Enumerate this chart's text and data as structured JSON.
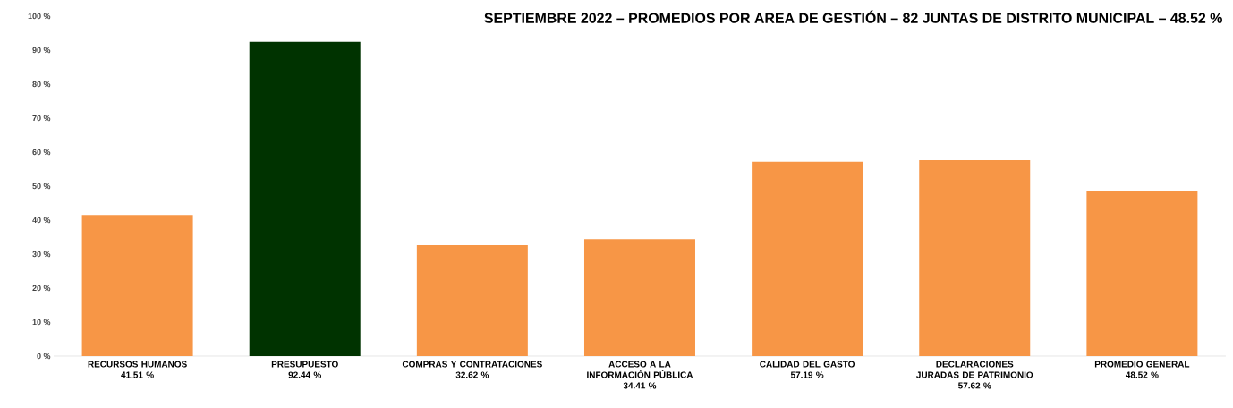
{
  "chart_data": {
    "type": "bar",
    "title": "SEPTIEMBRE 2022 – PROMEDIOS POR AREA DE GESTIÓN – 82 JUNTAS DE DISTRITO MUNICIPAL – 48.52 %",
    "categories": [
      "RECURSOS HUMANOS",
      "PRESUPUESTO",
      "COMPRAS Y CONTRATACIONES",
      "ACCESO A LA INFORMACIÓN PÚBLICA",
      "CALIDAD DEL GASTO",
      "DECLARACIONES JURADAS DE PATRIMONIO",
      "PROMEDIO GENERAL"
    ],
    "values": [
      41.51,
      92.44,
      32.62,
      34.41,
      57.19,
      57.62,
      48.52
    ],
    "value_labels": [
      "41.51 %",
      "92.44 %",
      "32.62 %",
      "34.41 %",
      "57.19 %",
      "57.62 %",
      "48.52 %"
    ],
    "colors": [
      "#f79646",
      "#003300",
      "#f79646",
      "#f79646",
      "#f79646",
      "#f79646",
      "#f79646"
    ],
    "ylim": [
      0,
      100
    ],
    "yticks": [
      {
        "value": 0,
        "label": "0 %"
      },
      {
        "value": 10,
        "label": "10 %"
      },
      {
        "value": 20,
        "label": "20 %"
      },
      {
        "value": 30,
        "label": "30 %"
      },
      {
        "value": 40,
        "label": "40 %"
      },
      {
        "value": 50,
        "label": "50 %"
      },
      {
        "value": 60,
        "label": "60 %"
      },
      {
        "value": 70,
        "label": "70 %"
      },
      {
        "value": 80,
        "label": "80 %"
      },
      {
        "value": 90,
        "label": "90 %"
      },
      {
        "value": 100,
        "label": "100 %"
      }
    ]
  }
}
